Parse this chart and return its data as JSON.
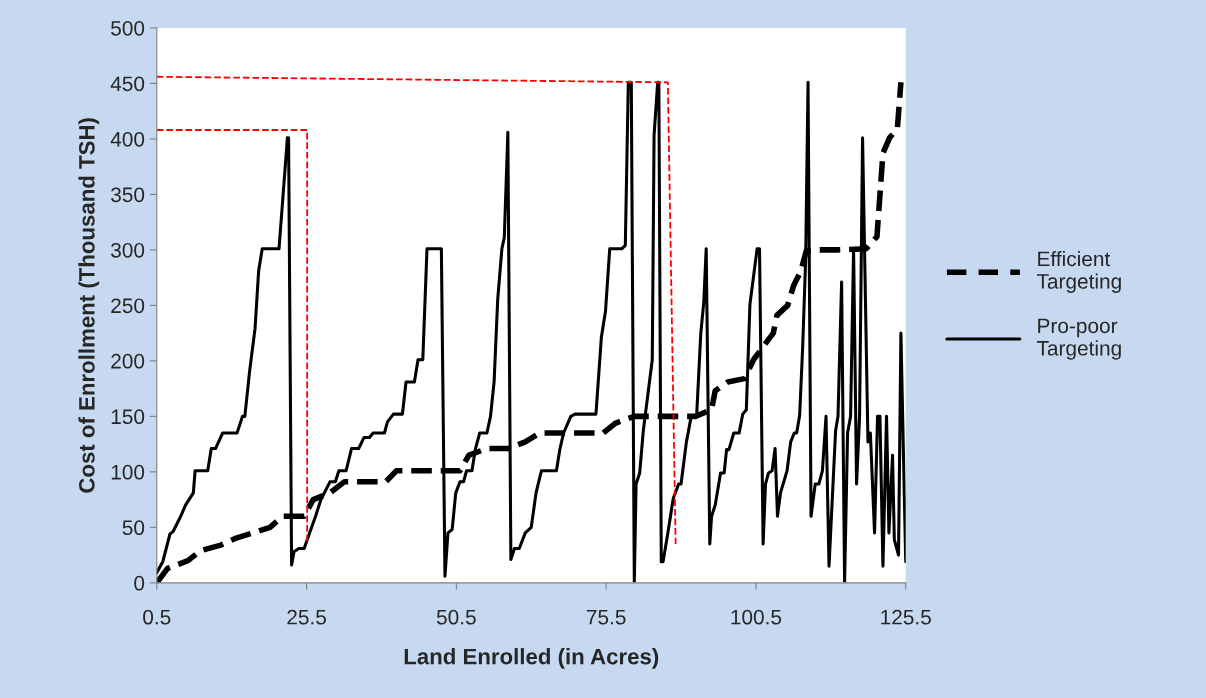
{
  "chart_data": {
    "type": "line",
    "xlabel": "Land Enrolled (in Acres)",
    "ylabel": "Cost of Enrollment (Thousand TSH)",
    "xlim": [
      0.5,
      125.5
    ],
    "xticks": [
      0.5,
      25.5,
      50.5,
      75.5,
      100.5,
      125.5
    ],
    "ylim": [
      0,
      500
    ],
    "yticks": [
      0,
      50,
      100,
      150,
      200,
      250,
      300,
      350,
      400,
      450,
      500
    ],
    "grid": false,
    "legend": "right",
    "marker": "none",
    "series": [
      {
        "name": "Efficient Targeting",
        "color": "#000000",
        "line_style": "dashed",
        "x": [
          0.5,
          2.3,
          5.7,
          7.8,
          11.2,
          13.6,
          16.6,
          19.4,
          21.5,
          25.1,
          26.6,
          29.4,
          31.8,
          35.1,
          38.7,
          40.5,
          44.1,
          47.7,
          51.1,
          52.6,
          55.6,
          59.2,
          62,
          64.4,
          66.6,
          70.4,
          75,
          77.1,
          80.2,
          83.5,
          90.4,
          93.1,
          93.7,
          95.8,
          98.6,
          100.1,
          101.6,
          103.4,
          104,
          105.8,
          106.8,
          108,
          108.9,
          110.7,
          114,
          118.9,
          120.7,
          121.7,
          122.8,
          124.1,
          124.7
        ],
        "values": [
          0,
          13,
          20,
          29,
          34,
          40,
          45,
          50,
          60,
          60,
          75,
          81,
          91,
          91,
          91,
          101,
          101,
          101,
          101,
          115,
          121,
          121,
          127,
          135,
          135,
          135,
          135,
          144,
          150,
          150,
          150,
          156,
          173,
          181,
          184,
          201,
          212,
          225,
          241,
          250,
          268,
          281,
          299,
          300,
          300,
          301,
          312,
          387,
          401,
          409,
          451
        ]
      },
      {
        "name": "Pro-poor Targeting",
        "color": "#000000",
        "line_style": "solid",
        "x": [
          0.5,
          1.5,
          2.7,
          3.2,
          4.5,
          5.3,
          6.6,
          6.9,
          9,
          9.6,
          10.3,
          11.5,
          13.9,
          14.8,
          15.2,
          16,
          16.9,
          17.5,
          18.1,
          20.9,
          22.3,
          22.5,
          23,
          23.4,
          24.2,
          25.1,
          26,
          27,
          27.9,
          29.4,
          30.3,
          30.9,
          32.1,
          33,
          34.2,
          35.1,
          36,
          36.6,
          38.5,
          39,
          40,
          41.5,
          42.1,
          43.5,
          44.1,
          44.9,
          45.6,
          48,
          48.6,
          49.1,
          49.8,
          50.4,
          51.1,
          51.7,
          52.2,
          53.1,
          53.7,
          54.4,
          55.6,
          56.2,
          56.8,
          57.4,
          58.1,
          58.5,
          59.1,
          59.6,
          60.2,
          61,
          62,
          63,
          63.8,
          64.7,
          67.2,
          67.8,
          68.4,
          69.6,
          70.3,
          73.8,
          74.7,
          75.4,
          76.1,
          78.1,
          78.7,
          79.2,
          79.7,
          80.2,
          80.5,
          81.1,
          81.7,
          83.2,
          83.5,
          84.1,
          84.3,
          84.7,
          85,
          85.8,
          86.7,
          87.6,
          88,
          88.9,
          89.7,
          90.6,
          91.3,
          91.8,
          92.2,
          92.8,
          93.1,
          93.7,
          94.6,
          95.2,
          95.6,
          96,
          96.8,
          97.7,
          98.3,
          98.9,
          99.5,
          100.7,
          101.1,
          101.7,
          102.1,
          102.6,
          103.2,
          103.7,
          104.1,
          104.6,
          105.7,
          106.3,
          106.9,
          107.3,
          107.8,
          108.3,
          108.8,
          109.2,
          109.7,
          110.4,
          111,
          111.6,
          112.2,
          112.7,
          113.8,
          114.2,
          114.8,
          115.3,
          115.8,
          116.3,
          116.8,
          117.3,
          117.8,
          118.3,
          119.2,
          119.6,
          120.3,
          120.8,
          121.2,
          121.7,
          122.3,
          122.7,
          123.3,
          123.6,
          124.3,
          124.7,
          125.5
        ],
        "values": [
          9,
          19,
          44,
          46,
          60,
          70,
          81,
          101,
          101,
          121,
          121,
          135,
          135,
          150,
          150,
          191,
          229,
          281,
          301,
          301,
          401,
          401,
          16,
          28,
          31,
          31,
          45,
          60,
          75,
          91,
          91,
          101,
          101,
          121,
          121,
          131,
          131,
          135,
          135,
          145,
          152,
          152,
          181,
          181,
          201,
          201,
          301,
          301,
          6,
          45,
          48,
          81,
          91,
          91,
          101,
          101,
          121,
          135,
          135,
          150,
          181,
          255,
          301,
          311,
          406,
          21,
          31,
          31,
          45,
          50,
          81,
          101,
          101,
          121,
          135,
          150,
          152,
          152,
          221,
          245,
          301,
          301,
          304,
          451,
          451,
          1,
          89,
          99,
          137,
          201,
          403,
          451,
          451,
          19,
          19,
          45,
          76,
          89,
          89,
          127,
          150,
          150,
          225,
          253,
          301,
          35,
          60,
          70,
          99,
          99,
          120,
          120,
          135,
          135,
          152,
          156,
          251,
          301,
          301,
          35,
          89,
          99,
          101,
          121,
          60,
          81,
          101,
          127,
          135,
          135,
          151,
          212,
          291,
          451,
          60,
          89,
          89,
          101,
          150,
          15,
          137,
          150,
          271,
          1,
          135,
          150,
          301,
          89,
          150,
          401,
          127,
          135,
          45,
          150,
          150,
          15,
          150,
          45,
          115,
          39,
          25,
          225,
          19
        ]
      },
      {
        "color": "#ff0000",
        "line_style": "dashed",
        "x": [
          0.5,
          25.6,
          25.6
        ],
        "values": [
          408,
          408,
          35
        ]
      },
      {
        "color": "#ff0000",
        "line_style": "dashed",
        "x": [
          0.5,
          85.8,
          87.1
        ],
        "values": [
          456,
          451,
          35
        ]
      }
    ]
  }
}
